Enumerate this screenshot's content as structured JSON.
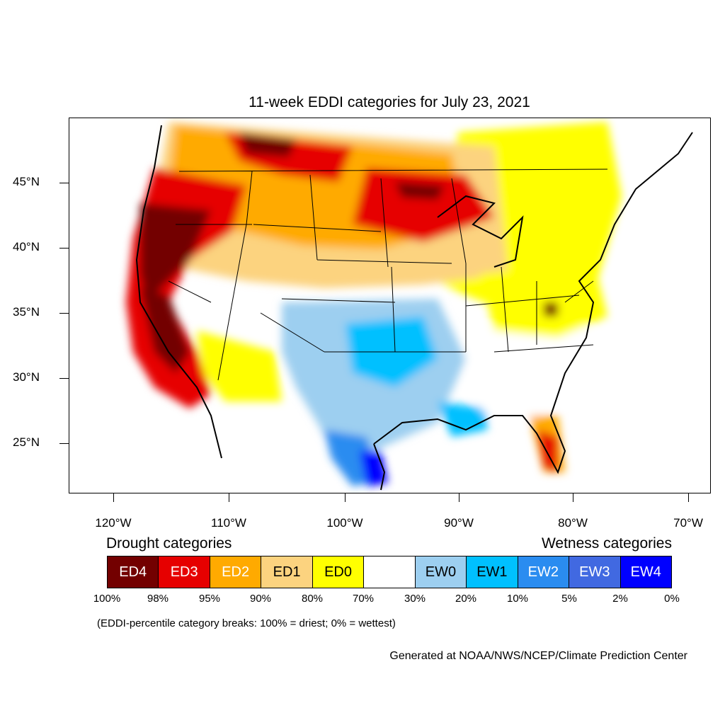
{
  "title": "11-week EDDI categories for July 23, 2021",
  "lat_labels": [
    "45°N",
    "40°N",
    "35°N",
    "30°N",
    "25°N"
  ],
  "lon_labels": [
    "120°W",
    "110°W",
    "100°W",
    "90°W",
    "80°W",
    "70°W"
  ],
  "legend": {
    "drought_heading": "Drought categories",
    "wetness_heading": "Wetness categories",
    "categories": [
      {
        "label": "ED4",
        "color": "#730000",
        "text_color": "#ffffff"
      },
      {
        "label": "ED3",
        "color": "#e60000",
        "text_color": "#ffffff"
      },
      {
        "label": "ED2",
        "color": "#ffaa00",
        "text_color": "#ffffff"
      },
      {
        "label": "ED1",
        "color": "#fcd37f",
        "text_color": "#000000"
      },
      {
        "label": "ED0",
        "color": "#ffff00",
        "text_color": "#000000"
      },
      {
        "label": "",
        "color": "#ffffff",
        "text_color": "#000000"
      },
      {
        "label": "EW0",
        "color": "#9dcff0",
        "text_color": "#000000"
      },
      {
        "label": "EW1",
        "color": "#00c0ff",
        "text_color": "#000000"
      },
      {
        "label": "EW2",
        "color": "#2a8cf0",
        "text_color": "#ffffff"
      },
      {
        "label": "EW3",
        "color": "#4169e1",
        "text_color": "#ffffff"
      },
      {
        "label": "EW4",
        "color": "#0000ff",
        "text_color": "#ffffff"
      }
    ],
    "breaks": [
      "100%",
      "98%",
      "95%",
      "90%",
      "80%",
      "70%",
      "30%",
      "20%",
      "10%",
      "5%",
      "2%",
      "0%"
    ]
  },
  "note": "(EDDI-percentile category breaks: 100% = driest; 0% = wettest)",
  "credit": "Generated at NOAA/NWS/NCEP/Climate Prediction Center"
}
